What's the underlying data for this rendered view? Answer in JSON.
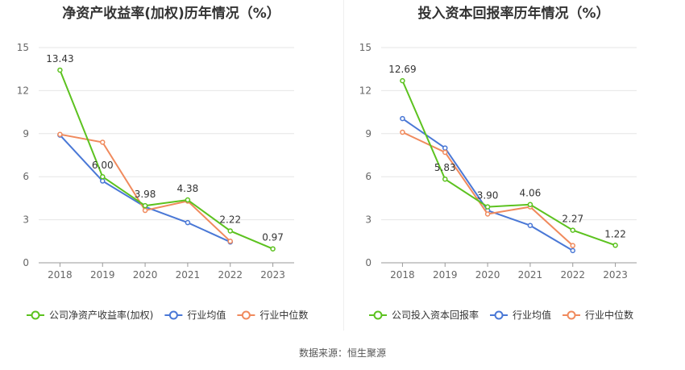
{
  "colors": {
    "company": "#5cc21f",
    "industry_avg": "#4a78d6",
    "industry_median": "#f08a5d",
    "grid": "#e6e6e6",
    "axis_text": "#666666"
  },
  "source": {
    "label": "数据来源：",
    "value": "恒生聚源"
  },
  "chart_data": [
    {
      "type": "line",
      "title": "净资产收益率(加权)历年情况（%）",
      "x": [
        "2018",
        "2019",
        "2020",
        "2021",
        "2022",
        "2023"
      ],
      "ylim": [
        0,
        15
      ],
      "yticks": [
        0,
        3,
        6,
        9,
        12,
        15
      ],
      "grid": true,
      "legend_position": "bottom",
      "series": [
        {
          "name": "公司净资产收益率(加权)",
          "color": "#5cc21f",
          "labeled": true,
          "values": [
            13.43,
            6.0,
            3.98,
            4.38,
            2.22,
            0.97
          ]
        },
        {
          "name": "行业均值",
          "color": "#4a78d6",
          "values": [
            8.9,
            5.7,
            3.9,
            2.8,
            1.45,
            null
          ]
        },
        {
          "name": "行业中位数",
          "color": "#f08a5d",
          "values": [
            8.95,
            8.4,
            3.65,
            4.3,
            1.5,
            null
          ]
        }
      ],
      "data_labels": [
        "13.43",
        "6.00",
        "3.98",
        "4.38",
        "2.22",
        "0.97"
      ]
    },
    {
      "type": "line",
      "title": "投入资本回报率历年情况（%）",
      "x": [
        "2018",
        "2019",
        "2020",
        "2021",
        "2022",
        "2023"
      ],
      "ylim": [
        0,
        15
      ],
      "yticks": [
        0,
        3,
        6,
        9,
        12,
        15
      ],
      "grid": true,
      "legend_position": "bottom",
      "series": [
        {
          "name": "公司投入资本回报率",
          "color": "#5cc21f",
          "labeled": true,
          "values": [
            12.69,
            5.83,
            3.9,
            4.06,
            2.27,
            1.22
          ]
        },
        {
          "name": "行业均值",
          "color": "#4a78d6",
          "values": [
            10.05,
            8.0,
            3.65,
            2.6,
            0.85,
            null
          ]
        },
        {
          "name": "行业中位数",
          "color": "#f08a5d",
          "values": [
            9.1,
            7.7,
            3.4,
            3.9,
            1.2,
            null
          ]
        }
      ],
      "data_labels": [
        "12.69",
        "5.83",
        "3.90",
        "4.06",
        "2.27",
        "1.22"
      ]
    }
  ]
}
